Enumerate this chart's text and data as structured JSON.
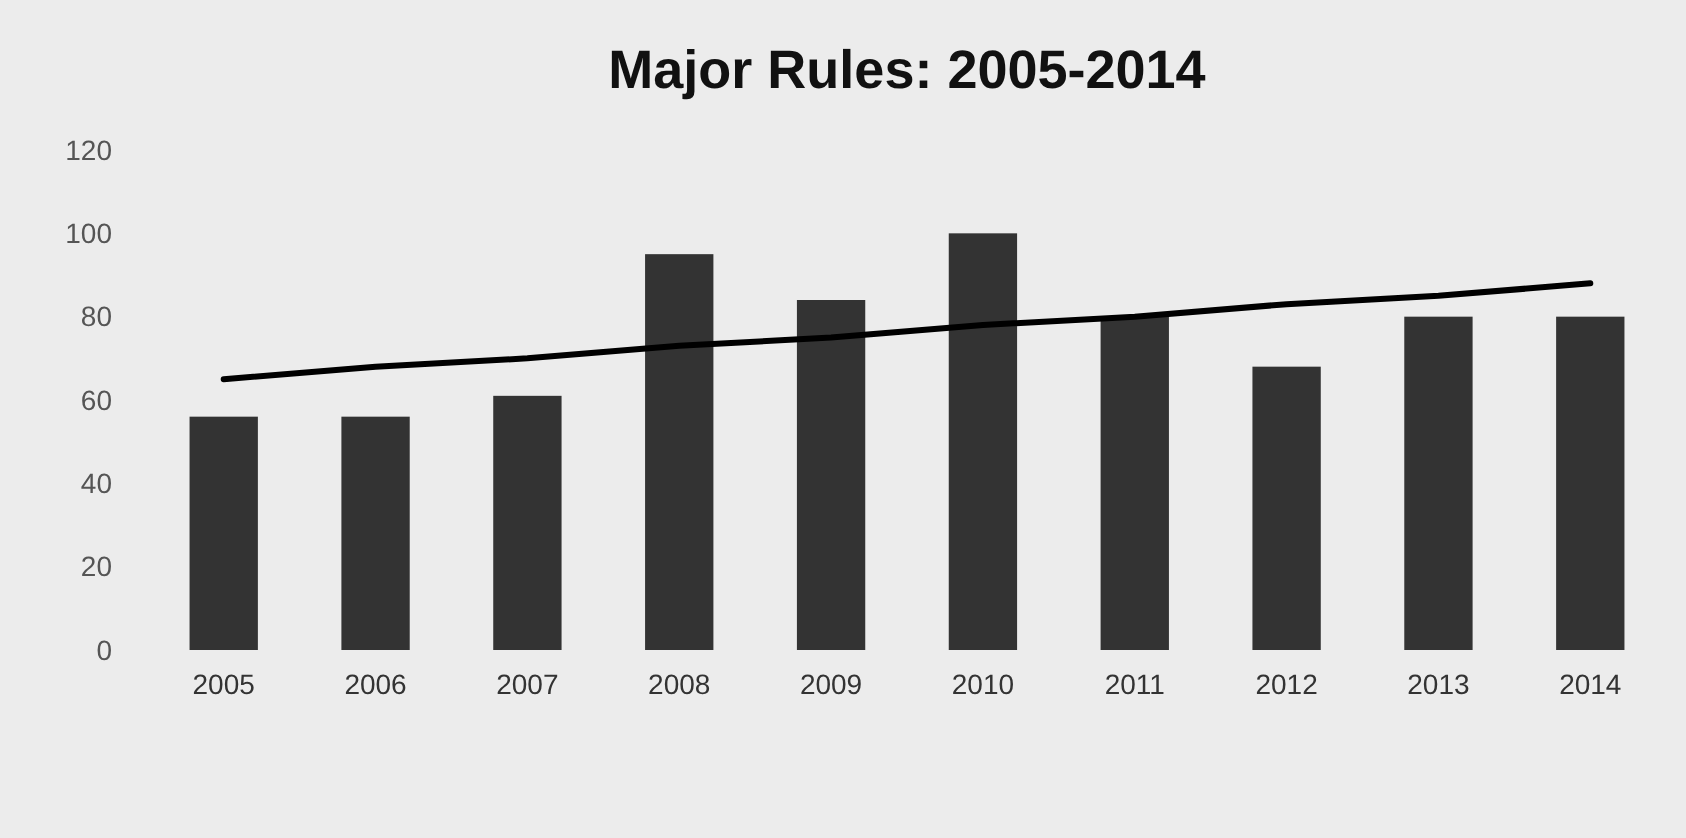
{
  "chart_data": {
    "type": "bar",
    "title": "Major Rules: 2005-2014",
    "categories": [
      "2005",
      "2006",
      "2007",
      "2008",
      "2009",
      "2010",
      "2011",
      "2012",
      "2013",
      "2014"
    ],
    "series": [
      {
        "color": "#333333",
        "values": [
          56,
          56,
          61,
          95,
          84,
          100,
          80,
          68,
          80,
          80
        ]
      },
      {
        "type": "line",
        "color": "#000000",
        "values": [
          65,
          68,
          70,
          73,
          75,
          78,
          80,
          83,
          85,
          88
        ]
      }
    ],
    "ylim": [
      0,
      120
    ],
    "yticks": [
      0,
      20,
      40,
      60,
      80,
      100,
      120
    ],
    "grid": false
  }
}
